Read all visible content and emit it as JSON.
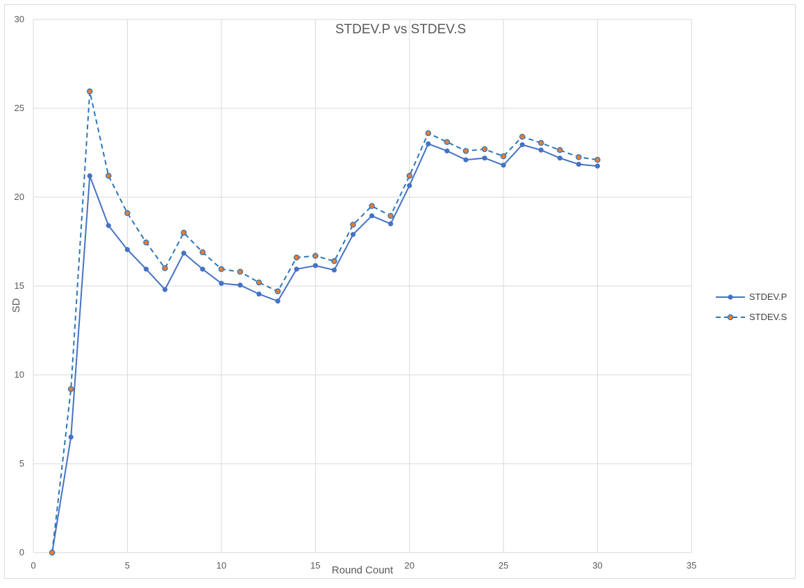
{
  "chart_data": {
    "type": "line",
    "title": "STDEV.P vs STDEV.S",
    "xlabel": "Round Count",
    "ylabel": "SD",
    "xlim": [
      0,
      35
    ],
    "ylim": [
      0,
      30
    ],
    "xticks": [
      0,
      5,
      10,
      15,
      20,
      25,
      30,
      35
    ],
    "yticks": [
      0,
      5,
      10,
      15,
      20,
      25,
      30
    ],
    "grid": true,
    "legend_position": "right",
    "x": [
      1,
      2,
      3,
      4,
      5,
      6,
      7,
      8,
      9,
      10,
      11,
      12,
      13,
      14,
      15,
      16,
      17,
      18,
      19,
      20,
      21,
      22,
      23,
      24,
      25,
      26,
      27,
      28,
      29,
      30
    ],
    "series": [
      {
        "name": "STDEV.P",
        "style": "solid",
        "color": "#4472c4",
        "marker_color": "#4472c4",
        "values": [
          0,
          6.5,
          21.2,
          18.4,
          17.05,
          15.95,
          14.8,
          16.85,
          15.95,
          15.15,
          15.05,
          14.55,
          14.15,
          15.95,
          16.15,
          15.9,
          17.9,
          18.95,
          18.5,
          20.65,
          23.0,
          22.6,
          22.1,
          22.2,
          21.8,
          22.95,
          22.65,
          22.2,
          21.85,
          21.75
        ]
      },
      {
        "name": "STDEV.S",
        "style": "dashed",
        "color": "#2e75b6",
        "marker_color": "#ed7d31",
        "values": [
          0,
          9.2,
          25.95,
          21.2,
          19.1,
          17.45,
          16.0,
          18.0,
          16.9,
          15.95,
          15.8,
          15.2,
          14.7,
          16.6,
          16.7,
          16.4,
          18.45,
          19.5,
          18.95,
          21.2,
          23.6,
          23.1,
          22.6,
          22.7,
          22.3,
          23.4,
          23.05,
          22.65,
          22.25,
          22.1
        ]
      }
    ]
  }
}
